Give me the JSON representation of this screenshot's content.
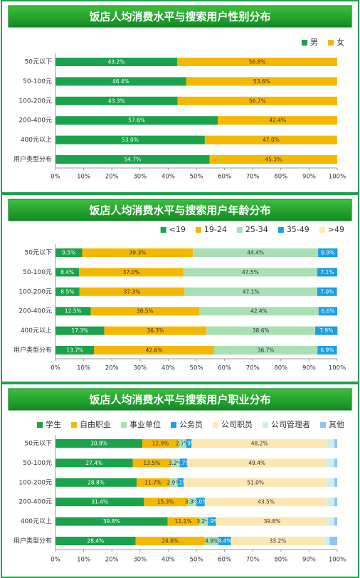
{
  "chart_data": [
    {
      "type": "stacked-bar-100",
      "title": "饭店人均消费水平与搜索用户性别分布",
      "categories": [
        "50元以下",
        "50-100元",
        "100-200元",
        "200-400元",
        "400元以上",
        "用户类型分布"
      ],
      "series": [
        {
          "name": "男",
          "color": "#1aa34a",
          "values": [
            43.2,
            46.4,
            43.3,
            57.6,
            53.0,
            54.7
          ],
          "value_labels": [
            "43.2%",
            "46.4%",
            "43.3%",
            "57.6%",
            "53.0%",
            "54.7%"
          ]
        },
        {
          "name": "女",
          "color": "#f5b800",
          "values": [
            56.8,
            53.6,
            56.7,
            42.4,
            47.0,
            45.3
          ],
          "value_labels": [
            "56.8%",
            "53.6%",
            "56.7%",
            "42.4%",
            "47.0%",
            "45.3%"
          ]
        }
      ],
      "xlim": [
        0,
        100
      ],
      "xticks": [
        {
          "value": 0,
          "label": "0%"
        },
        {
          "value": 10,
          "label": "10%"
        },
        {
          "value": 20,
          "label": "20%"
        },
        {
          "value": 30,
          "label": "30%"
        },
        {
          "value": 40,
          "label": "40%"
        },
        {
          "value": 50,
          "label": "50%"
        },
        {
          "value": 60,
          "label": "60%"
        },
        {
          "value": 70,
          "label": "70%"
        },
        {
          "value": 80,
          "label": "80%"
        },
        {
          "value": 90,
          "label": "90%"
        },
        {
          "value": 100,
          "label": "100%"
        }
      ]
    },
    {
      "type": "stacked-bar-100",
      "title": "饭店人均消费水平与搜索用户年龄分布",
      "categories": [
        "50元以下",
        "50-100元",
        "100-200元",
        "200-400元",
        "400元以上",
        "用户类型分布"
      ],
      "series": [
        {
          "name": "<19",
          "color": "#1aa34a",
          "values": [
            9.5,
            8.4,
            8.5,
            12.5,
            17.3,
            13.7
          ],
          "value_labels": [
            "9.5%",
            "8.4%",
            "8.5%",
            "12.5%",
            "17.3%",
            "13.7%"
          ]
        },
        {
          "name": "19-24",
          "color": "#f5b800",
          "values": [
            39.3,
            37.0,
            37.3,
            38.5,
            36.3,
            42.6
          ],
          "value_labels": [
            "39.3%",
            "37.0%",
            "37.3%",
            "38.5%",
            "36.3%",
            "42.6%"
          ]
        },
        {
          "name": "25-34",
          "color": "#a8e0b4",
          "values": [
            44.4,
            47.5,
            47.1,
            42.4,
            38.6,
            36.7
          ],
          "value_labels": [
            "44.4%",
            "47.5%",
            "47.1%",
            "42.4%",
            "38.6%",
            "36.7%"
          ]
        },
        {
          "name": "35-49",
          "color": "#1a9fe0",
          "values": [
            6.9,
            7.1,
            7.0,
            6.6,
            7.9,
            6.9
          ],
          "value_labels": [
            "6.9%",
            "7.1%",
            "7.0%",
            "6.6%",
            "7.9%",
            "6.9%"
          ]
        },
        {
          "name": ">49",
          "color": "#fdebb5",
          "values": [
            0,
            0,
            0.1,
            0,
            0,
            0.1
          ],
          "value_labels": [
            null,
            null,
            null,
            null,
            null,
            null
          ]
        }
      ],
      "xlim": [
        0,
        100
      ],
      "xticks": [
        {
          "value": 0,
          "label": "0%"
        },
        {
          "value": 10,
          "label": "10%"
        },
        {
          "value": 20,
          "label": "20%"
        },
        {
          "value": 30,
          "label": "30%"
        },
        {
          "value": 40,
          "label": "40%"
        },
        {
          "value": 50,
          "label": "50%"
        },
        {
          "value": 60,
          "label": "60%"
        },
        {
          "value": 70,
          "label": "70%"
        },
        {
          "value": 80,
          "label": "80%"
        },
        {
          "value": 90,
          "label": "90%"
        },
        {
          "value": 100,
          "label": "100%"
        }
      ]
    },
    {
      "type": "stacked-bar-100",
      "title": "饭店人均消费水平与搜索用户职业分布",
      "categories": [
        "50元以下",
        "50-100元",
        "100-200元",
        "200-400元",
        "400元以上",
        "用户类型分布"
      ],
      "series": [
        {
          "name": "学生",
          "color": "#1aa34a",
          "values": [
            30.8,
            27.4,
            28.8,
            31.4,
            39.8,
            28.4
          ],
          "value_labels": [
            "30.8%",
            "27.4%",
            "28.8%",
            "31.4%",
            "39.8%",
            "28.4%"
          ]
        },
        {
          "name": "自由职业",
          "color": "#f5b800",
          "values": [
            12.9,
            13.5,
            11.7,
            15.3,
            11.1,
            24.6
          ],
          "value_labels": [
            "12.9%",
            "13.5%",
            "11.7%",
            "15.3%",
            "11.1%",
            "24.6%"
          ]
        },
        {
          "name": "事业单位",
          "color": "#a8e0b4",
          "values": [
            2.7,
            3.2,
            2.9,
            3.3,
            3.2,
            4.9
          ],
          "value_labels": [
            "2.7%",
            "3.2%",
            "2.9%",
            "3.3%",
            "3.2%",
            "4.9%"
          ]
        },
        {
          "name": "公务员",
          "color": "#1a9fe0",
          "values": [
            1.9,
            2.7,
            2.1,
            3.0,
            2.9,
            4.4
          ],
          "value_labels": [
            "1.9%",
            "2.7%",
            "2.1%",
            "3.0%",
            "2.9%",
            "4.4%"
          ]
        },
        {
          "name": "公司职员",
          "color": "#fde6b0",
          "values": [
            48.2,
            49.4,
            51.0,
            43.5,
            39.8,
            33.2
          ],
          "value_labels": [
            "48.2%",
            "49.4%",
            "51.0%",
            "43.5%",
            "39.8%",
            "33.2%"
          ]
        },
        {
          "name": "公司管理者",
          "color": "#c8f0f0",
          "values": [
            2.5,
            2.8,
            2.5,
            2.5,
            2.2,
            1.8
          ],
          "value_labels": [
            null,
            null,
            null,
            null,
            null,
            null
          ]
        },
        {
          "name": "其他",
          "color": "#8cc4f0",
          "values": [
            1.0,
            1.0,
            1.0,
            1.0,
            1.0,
            2.7
          ],
          "value_labels": [
            null,
            null,
            null,
            null,
            null,
            null
          ]
        }
      ],
      "xlim": [
        0,
        100
      ],
      "xticks": [
        {
          "value": 0,
          "label": "0%"
        },
        {
          "value": 10,
          "label": "10%"
        },
        {
          "value": 20,
          "label": "20%"
        },
        {
          "value": 30,
          "label": "30%"
        },
        {
          "value": 40,
          "label": "40%"
        },
        {
          "value": 50,
          "label": "50%"
        },
        {
          "value": 60,
          "label": "60%"
        },
        {
          "value": 70,
          "label": "70%"
        },
        {
          "value": 80,
          "label": "80%"
        },
        {
          "value": 90,
          "label": "90%"
        },
        {
          "value": 100,
          "label": "100%"
        }
      ]
    }
  ]
}
